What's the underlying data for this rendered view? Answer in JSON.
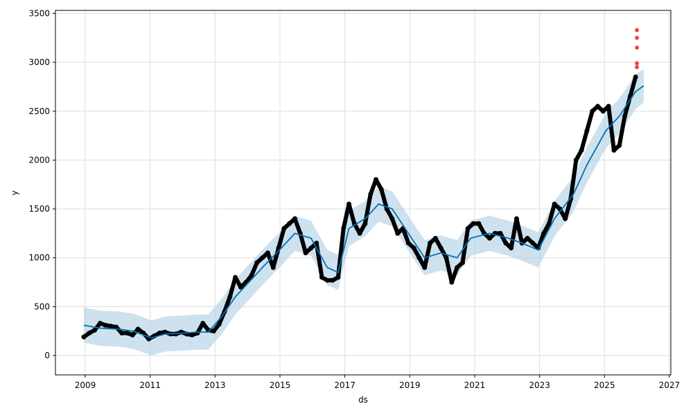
{
  "chart_data": {
    "type": "scatter",
    "title": "",
    "xlabel": "ds",
    "ylabel": "y",
    "xlim": [
      "2008-02",
      "2027-02"
    ],
    "ylim": [
      -200,
      3520
    ],
    "xticks": [
      "2009",
      "2011",
      "2013",
      "2015",
      "2017",
      "2019",
      "2021",
      "2023",
      "2025",
      "2027"
    ],
    "yticks": [
      "0",
      "500",
      "1000",
      "1500",
      "2000",
      "2500",
      "3000",
      "3500"
    ],
    "grid": true,
    "colors": {
      "actual": "#000000",
      "forecast": "#0072B2",
      "band": "#b3d1e6",
      "test": "#ff0000"
    },
    "actual": {
      "x": [
        "2008-12",
        "2009-02",
        "2009-04",
        "2009-06",
        "2009-08",
        "2009-10",
        "2009-12",
        "2010-02",
        "2010-04",
        "2010-06",
        "2010-08",
        "2010-10",
        "2010-12",
        "2011-02",
        "2011-04",
        "2011-06",
        "2011-08",
        "2011-10",
        "2011-12",
        "2012-02",
        "2012-04",
        "2012-06",
        "2012-08",
        "2012-10",
        "2012-12",
        "2013-02",
        "2013-04",
        "2013-06",
        "2013-08",
        "2013-10",
        "2013-12",
        "2014-02",
        "2014-04",
        "2014-06",
        "2014-08",
        "2014-10",
        "2014-12",
        "2015-02",
        "2015-04",
        "2015-06",
        "2015-08",
        "2015-10",
        "2015-12",
        "2016-02",
        "2016-04",
        "2016-06",
        "2016-08",
        "2016-10",
        "2016-12",
        "2017-02",
        "2017-04",
        "2017-06",
        "2017-08",
        "2017-10",
        "2017-12",
        "2018-02",
        "2018-04",
        "2018-06",
        "2018-08",
        "2018-10",
        "2018-12",
        "2019-02",
        "2019-04",
        "2019-06",
        "2019-08",
        "2019-10",
        "2019-12",
        "2020-02",
        "2020-04",
        "2020-06",
        "2020-08",
        "2020-10",
        "2020-12",
        "2021-02",
        "2021-04",
        "2021-06",
        "2021-08",
        "2021-10",
        "2021-12",
        "2022-02",
        "2022-04",
        "2022-06",
        "2022-08",
        "2022-10",
        "2022-12",
        "2023-02",
        "2023-04",
        "2023-06",
        "2023-08",
        "2023-10",
        "2023-12",
        "2024-02",
        "2024-04",
        "2024-06",
        "2024-08",
        "2024-10",
        "2024-12",
        "2025-02",
        "2025-04",
        "2025-06",
        "2025-08",
        "2025-10",
        "2025-12"
      ],
      "y": [
        190,
        230,
        260,
        330,
        310,
        300,
        290,
        230,
        230,
        210,
        270,
        230,
        170,
        200,
        230,
        240,
        220,
        220,
        240,
        220,
        210,
        230,
        330,
        260,
        250,
        320,
        450,
        600,
        800,
        700,
        750,
        820,
        950,
        1000,
        1050,
        900,
        1100,
        1300,
        1350,
        1400,
        1250,
        1050,
        1100,
        1150,
        800,
        770,
        770,
        800,
        1300,
        1550,
        1350,
        1250,
        1350,
        1650,
        1800,
        1700,
        1500,
        1400,
        1250,
        1300,
        1150,
        1100,
        1000,
        900,
        1150,
        1200,
        1100,
        1000,
        750,
        900,
        950,
        1300,
        1350,
        1350,
        1250,
        1200,
        1250,
        1250,
        1150,
        1100,
        1400,
        1150,
        1200,
        1150,
        1100,
        1250,
        1350,
        1550,
        1500,
        1400,
        1600,
        2000,
        2100,
        2300,
        2500,
        2550,
        2500,
        2550,
        2100,
        2150,
        2450,
        2650,
        2850
      ]
    },
    "test": {
      "x": [
        "2026-01",
        "2026-01",
        "2026-01",
        "2026-01",
        "2026-01"
      ],
      "y": [
        2950,
        2990,
        3150,
        3250,
        3330
      ]
    },
    "forecast": {
      "x": [
        "2008-12",
        "2009-06",
        "2010-01",
        "2010-06",
        "2011-01",
        "2011-06",
        "2012-01",
        "2012-06",
        "2012-10",
        "2013-03",
        "2013-08",
        "2014-01",
        "2014-06",
        "2015-01",
        "2015-06",
        "2015-12",
        "2016-06",
        "2016-10",
        "2017-02",
        "2017-08",
        "2018-01",
        "2018-06",
        "2018-12",
        "2019-06",
        "2019-12",
        "2020-06",
        "2020-11",
        "2021-06",
        "2022-01",
        "2022-06",
        "2022-12",
        "2023-06",
        "2024-01",
        "2024-06",
        "2025-01",
        "2025-06",
        "2025-12",
        "2026-03"
      ],
      "yhat": [
        310,
        280,
        270,
        250,
        180,
        220,
        230,
        240,
        240,
        400,
        600,
        750,
        900,
        1100,
        1250,
        1200,
        900,
        850,
        1300,
        1400,
        1550,
        1500,
        1250,
        1000,
        1050,
        1000,
        1200,
        1250,
        1200,
        1150,
        1080,
        1400,
        1650,
        1950,
        2300,
        2450,
        2700,
        2760
      ],
      "lower": [
        130,
        100,
        90,
        70,
        0,
        40,
        50,
        60,
        60,
        220,
        420,
        570,
        720,
        920,
        1070,
        1020,
        720,
        670,
        1120,
        1220,
        1370,
        1320,
        1070,
        820,
        870,
        820,
        1020,
        1070,
        1020,
        970,
        900,
        1220,
        1470,
        1770,
        2120,
        2270,
        2520,
        2590
      ],
      "upper": [
        490,
        460,
        450,
        430,
        360,
        400,
        410,
        420,
        420,
        580,
        780,
        930,
        1080,
        1280,
        1430,
        1380,
        1080,
        1030,
        1480,
        1580,
        1730,
        1680,
        1430,
        1180,
        1230,
        1180,
        1380,
        1430,
        1380,
        1330,
        1260,
        1580,
        1830,
        2130,
        2480,
        2630,
        2880,
        2930
      ]
    }
  }
}
